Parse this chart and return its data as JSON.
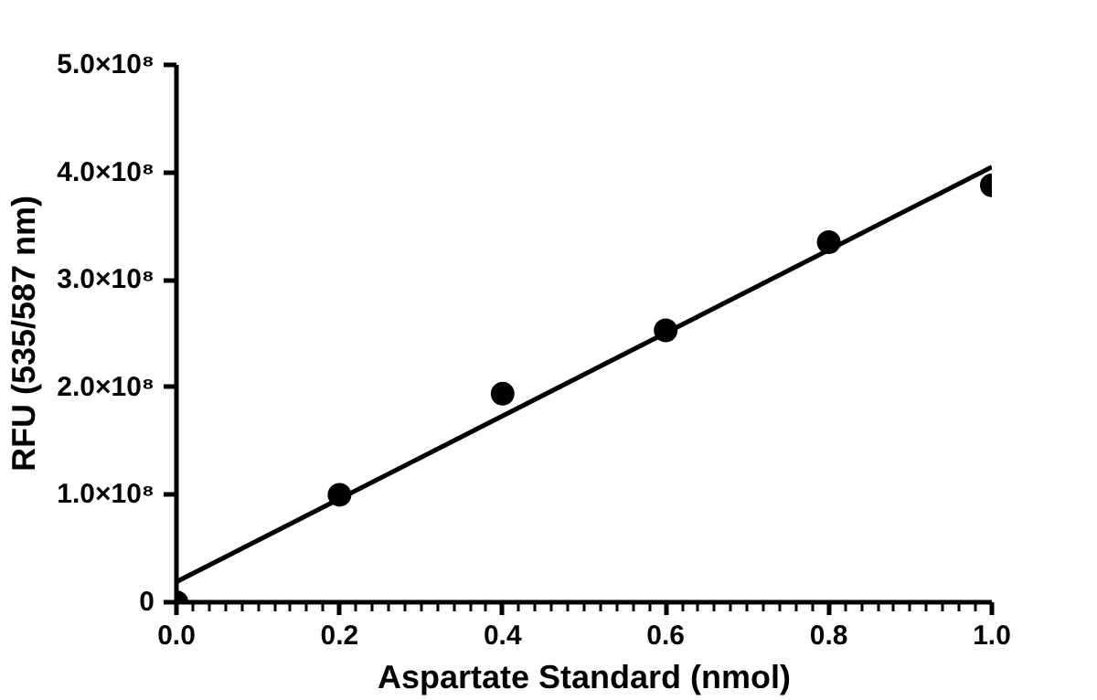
{
  "chart_data": {
    "type": "scatter",
    "xlabel": "Aspartate Standard (nmol)",
    "ylabel": "RFU (535/587 nm)",
    "xlim": [
      0,
      1
    ],
    "xticks": [
      {
        "value": 0,
        "label": "0.0"
      },
      {
        "value": 0.2,
        "label": "0.2"
      },
      {
        "value": 0.4,
        "label": "0.4"
      },
      {
        "value": 0.6,
        "label": "0.6"
      },
      {
        "value": 0.8,
        "label": "0.8"
      },
      {
        "value": 1,
        "label": "1.0"
      }
    ],
    "ylim": [
      0,
      500000000
    ],
    "yticks": [
      0,
      {
        "value": 100000000,
        "label": "1.0×10⁸"
      },
      {
        "value": 200000000,
        "label": "2.0×10⁸"
      },
      {
        "value": 300000000,
        "label": "3.0×10⁸"
      },
      {
        "value": 400000000,
        "label": "4.0×10⁸"
      },
      {
        "value": 500000000,
        "label": "5.0×10⁸"
      }
    ],
    "grid": false,
    "series": [
      {
        "marker": "circle",
        "color": "#000000",
        "x": [
          0,
          0.2,
          0.4,
          0.6,
          0.8,
          1.0
        ],
        "values": [
          0,
          100000000,
          194000000,
          253000000,
          335000000,
          388000000
        ]
      },
      {
        "type": "line",
        "color": "#000000",
        "x": [
          0,
          1
        ],
        "values": [
          19000000,
          405000000
        ]
      }
    ]
  }
}
